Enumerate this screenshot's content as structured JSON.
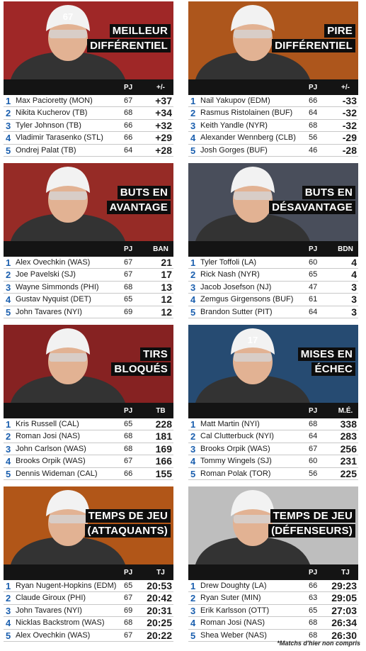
{
  "panels": [
    {
      "title": [
        "MEILLEUR",
        "DIFFÉRENTIEL"
      ],
      "pj_label": "PJ",
      "stat_label": "+/-",
      "jersey": "67",
      "photo_color": "#c23030",
      "rows": [
        {
          "rank": "1",
          "name": "Max Pacioretty (MON)",
          "gp": "67",
          "value": "+37"
        },
        {
          "rank": "2",
          "name": "Nikita Kucherov (TB)",
          "gp": "68",
          "value": "+34"
        },
        {
          "rank": "3",
          "name": "Tyler Johnson (TB)",
          "gp": "66",
          "value": "+32"
        },
        {
          "rank": "4",
          "name": "Vladimir Tarasenko (STL)",
          "gp": "66",
          "value": "+29"
        },
        {
          "rank": "5",
          "name": "Ondrej Palat (TB)",
          "gp": "64",
          "value": "+28"
        }
      ]
    },
    {
      "title": [
        "PIRE",
        "DIFFÉRENTIEL"
      ],
      "pj_label": "PJ",
      "stat_label": "+/-",
      "jersey": "",
      "photo_color": "#d46a23",
      "rows": [
        {
          "rank": "1",
          "name": "Nail Yakupov (EDM)",
          "gp": "66",
          "value": "-33"
        },
        {
          "rank": "2",
          "name": "Rasmus Ristolainen (BUF)",
          "gp": "64",
          "value": "-32"
        },
        {
          "rank": "3",
          "name": "Keith Yandle (NYR)",
          "gp": "68",
          "value": "-32"
        },
        {
          "rank": "4",
          "name": "Alexander Wennberg (CLB)",
          "gp": "56",
          "value": "-29"
        },
        {
          "rank": "5",
          "name": "Josh Gorges (BUF)",
          "gp": "46",
          "value": "-28"
        }
      ]
    },
    {
      "title": [
        "BUTS EN",
        "AVANTAGE"
      ],
      "pj_label": "PJ",
      "stat_label": "BAN",
      "jersey": "",
      "photo_color": "#b8352f",
      "rows": [
        {
          "rank": "1",
          "name": "Alex Ovechkin (WAS)",
          "gp": "67",
          "value": "21"
        },
        {
          "rank": "2",
          "name": "Joe Pavelski (SJ)",
          "gp": "67",
          "value": "17"
        },
        {
          "rank": "3",
          "name": "Wayne Simmonds (PHI)",
          "gp": "68",
          "value": "13"
        },
        {
          "rank": "4",
          "name": "Gustav Nyquist (DET)",
          "gp": "65",
          "value": "12"
        },
        {
          "rank": "5",
          "name": "John Tavares (NYI)",
          "gp": "69",
          "value": "12"
        }
      ]
    },
    {
      "title": [
        "BUTS EN",
        "DÉSAVANTAGE"
      ],
      "pj_label": "PJ",
      "stat_label": "BDN",
      "jersey": "",
      "photo_color": "#5a6070",
      "rows": [
        {
          "rank": "1",
          "name": "Tyler Toffoli (LA)",
          "gp": "60",
          "value": "4"
        },
        {
          "rank": "2",
          "name": "Rick Nash (NYR)",
          "gp": "65",
          "value": "4"
        },
        {
          "rank": "3",
          "name": "Jacob Josefson (NJ)",
          "gp": "47",
          "value": "3"
        },
        {
          "rank": "4",
          "name": "Zemgus Girgensons (BUF)",
          "gp": "61",
          "value": "3"
        },
        {
          "rank": "5",
          "name": "Brandon Sutter (PIT)",
          "gp": "64",
          "value": "3"
        }
      ]
    },
    {
      "title": [
        "TIRS",
        "BLOQUÉS"
      ],
      "pj_label": "PJ",
      "stat_label": "TB",
      "jersey": "",
      "photo_color": "#a42a2a",
      "rows": [
        {
          "rank": "1",
          "name": "Kris Russell (CAL)",
          "gp": "65",
          "value": "228"
        },
        {
          "rank": "2",
          "name": "Roman Josi (NAS)",
          "gp": "68",
          "value": "181"
        },
        {
          "rank": "3",
          "name": "John Carlson (WAS)",
          "gp": "68",
          "value": "169"
        },
        {
          "rank": "4",
          "name": "Brooks Orpik (WAS)",
          "gp": "67",
          "value": "166"
        },
        {
          "rank": "5",
          "name": "Dennis Wideman (CAL)",
          "gp": "66",
          "value": "155"
        }
      ]
    },
    {
      "title": [
        "MISES EN",
        "ÉCHEC"
      ],
      "pj_label": "PJ",
      "stat_label": "M.É.",
      "jersey": "17",
      "photo_color": "#2f5c8c",
      "rows": [
        {
          "rank": "1",
          "name": "Matt Martin (NYI)",
          "gp": "68",
          "value": "338"
        },
        {
          "rank": "2",
          "name": "Cal Clutterbuck (NYI)",
          "gp": "64",
          "value": "283"
        },
        {
          "rank": "3",
          "name": "Brooks Orpik (WAS)",
          "gp": "67",
          "value": "256"
        },
        {
          "rank": "4",
          "name": "Tommy Wingels (SJ)",
          "gp": "60",
          "value": "231"
        },
        {
          "rank": "5",
          "name": "Roman Polak (TOR)",
          "gp": "56",
          "value": "225"
        }
      ]
    },
    {
      "title": [
        "TEMPS DE JEU",
        "(ATTAQUANTS)"
      ],
      "pj_label": "PJ",
      "stat_label": "TJ",
      "jersey": "",
      "photo_color": "#d86a1e",
      "rows": [
        {
          "rank": "1",
          "name": "Ryan Nugent-Hopkins (EDM)",
          "gp": "65",
          "value": "20:53"
        },
        {
          "rank": "2",
          "name": "Claude Giroux (PHI)",
          "gp": "67",
          "value": "20:42"
        },
        {
          "rank": "3",
          "name": "John Tavares (NYI)",
          "gp": "69",
          "value": "20:31"
        },
        {
          "rank": "4",
          "name": "Nicklas Backstrom (WAS)",
          "gp": "68",
          "value": "20:25"
        },
        {
          "rank": "5",
          "name": "Alex Ovechkin (WAS)",
          "gp": "67",
          "value": "20:22"
        }
      ]
    },
    {
      "title": [
        "TEMPS DE JEU",
        "(DÉFENSEURS)"
      ],
      "pj_label": "PJ",
      "stat_label": "TJ",
      "jersey": "",
      "photo_color": "#e8e8e8",
      "rows": [
        {
          "rank": "1",
          "name": "Drew Doughty (LA)",
          "gp": "66",
          "value": "29:23"
        },
        {
          "rank": "2",
          "name": "Ryan Suter (MIN)",
          "gp": "63",
          "value": "29:05"
        },
        {
          "rank": "3",
          "name": "Erik Karlsson (OTT)",
          "gp": "65",
          "value": "27:03"
        },
        {
          "rank": "4",
          "name": "Roman Josi (NAS)",
          "gp": "68",
          "value": "26:34"
        },
        {
          "rank": "5",
          "name": "Shea Weber (NAS)",
          "gp": "68",
          "value": "26:30"
        }
      ]
    }
  ],
  "footnote": "*Matchs d'hier non compris",
  "colors": {
    "rank": "#1b5fae",
    "header": "#141414",
    "title_bg": "#0d0d0d"
  }
}
